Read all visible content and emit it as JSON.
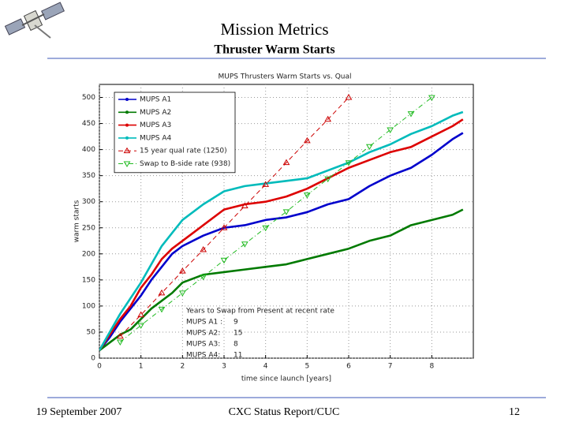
{
  "header": {
    "title": "Mission Metrics",
    "subtitle": "Thruster Warm Starts"
  },
  "footer": {
    "date": "19 September 2007",
    "center": "CXC Status Report/CUC",
    "page": 12
  },
  "chart_data": {
    "type": "line",
    "title": "MUPS Thrusters Warm Starts vs. Qual",
    "x_label": "time since launch [years]",
    "y_label": "warm starts",
    "x": [
      0,
      0.25,
      0.5,
      0.75,
      1,
      1.25,
      1.5,
      1.75,
      2,
      2.5,
      3,
      3.5,
      4,
      4.5,
      5,
      5.5,
      6,
      6.5,
      7,
      7.5,
      8,
      8.5,
      8.75
    ],
    "xlim": [
      0,
      9
    ],
    "xticks": [
      0,
      1,
      2,
      3,
      4,
      5,
      6,
      7,
      8
    ],
    "ylim": [
      0,
      525
    ],
    "yticks": [
      0,
      50,
      100,
      150,
      200,
      250,
      300,
      350,
      400,
      450,
      500
    ],
    "grid": true,
    "legend": "upper left",
    "series": [
      {
        "name": "MUPS A1",
        "color": "#0000cc",
        "values": [
          15,
          40,
          70,
          95,
          120,
          150,
          175,
          200,
          215,
          235,
          250,
          255,
          265,
          270,
          280,
          295,
          305,
          330,
          350,
          365,
          390,
          420,
          432
        ]
      },
      {
        "name": "MUPS A2",
        "color": "#007a00",
        "values": [
          15,
          30,
          45,
          55,
          75,
          95,
          110,
          125,
          145,
          160,
          165,
          170,
          175,
          180,
          190,
          200,
          210,
          225,
          235,
          255,
          265,
          275,
          285
        ]
      },
      {
        "name": "MUPS A3",
        "color": "#dd0000",
        "values": [
          15,
          45,
          75,
          100,
          135,
          160,
          190,
          210,
          225,
          255,
          285,
          295,
          300,
          310,
          325,
          345,
          365,
          380,
          395,
          405,
          425,
          445,
          458
        ]
      },
      {
        "name": "MUPS A4",
        "color": "#00bbbb",
        "values": [
          15,
          50,
          85,
          115,
          145,
          180,
          215,
          240,
          265,
          295,
          320,
          330,
          335,
          340,
          345,
          360,
          375,
          395,
          410,
          430,
          445,
          465,
          472
        ]
      },
      {
        "name": "15 year qual rate (1250)",
        "color": "#cc0000",
        "dash": "6,4",
        "marker": "triangle-up",
        "x": [
          0.5,
          1,
          1.5,
          2,
          2.5,
          3,
          3.5,
          4,
          4.5,
          5,
          5.5,
          6
        ],
        "values": [
          42,
          83,
          125,
          167,
          208,
          250,
          292,
          333,
          375,
          417,
          458,
          500
        ]
      },
      {
        "name": "Swap to B-side rate (938)",
        "color": "#22bb22",
        "dash": "6,3,1,3",
        "marker": "triangle-down",
        "x": [
          0.5,
          1,
          1.5,
          2,
          2.5,
          3,
          3.5,
          4,
          4.5,
          5,
          5.5,
          6,
          6.5,
          7,
          7.5,
          8
        ],
        "values": [
          31,
          63,
          94,
          125,
          156,
          188,
          219,
          250,
          281,
          313,
          344,
          375,
          406,
          438,
          469,
          500
        ]
      }
    ],
    "annotation": {
      "title": "Years to Swap from Present at recent rate",
      "rows": [
        {
          "label": "MUPS A1 :",
          "value": 9
        },
        {
          "label": "MUPS A2:",
          "value": 15
        },
        {
          "label": "MUPS A3:",
          "value": 8
        },
        {
          "label": "MUPS A4:",
          "value": 11
        }
      ]
    }
  }
}
